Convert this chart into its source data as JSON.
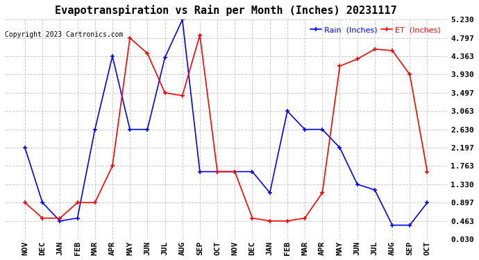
{
  "title": "Evapotranspiration vs Rain per Month (Inches) 20231117",
  "copyright": "Copyright 2023 Cartronics.com",
  "x_labels": [
    "NOV",
    "DEC",
    "JAN",
    "FEB",
    "MAR",
    "APR",
    "MAY",
    "JUN",
    "JUL",
    "AUG",
    "SEP",
    "OCT",
    "NOV",
    "DEC",
    "JAN",
    "FEB",
    "MAR",
    "APR",
    "MAY",
    "JUN",
    "JUL",
    "AUG",
    "SEP",
    "OCT"
  ],
  "rain_color": "blue",
  "et_color": "red",
  "legend_rain": "Rain  (Inches)",
  "legend_et": "ET  (Inches)",
  "rain_values": [
    2.197,
    0.897,
    0.463,
    0.53,
    2.63,
    4.363,
    2.63,
    2.63,
    4.33,
    5.23,
    1.63,
    1.63,
    1.63,
    1.63,
    1.13,
    3.063,
    2.63,
    2.63,
    2.197,
    1.33,
    1.197,
    0.363,
    0.363,
    0.897
  ],
  "et_values": [
    0.897,
    0.53,
    0.53,
    0.897,
    0.897,
    1.763,
    4.797,
    4.43,
    3.497,
    3.43,
    4.863,
    1.63,
    1.63,
    0.53,
    0.463,
    0.463,
    0.53,
    1.13,
    4.13,
    4.297,
    4.53,
    4.497,
    3.93,
    1.63
  ],
  "ylim_min": 0.03,
  "ylim_max": 5.23,
  "yticks": [
    0.03,
    0.463,
    0.897,
    1.33,
    1.763,
    2.197,
    2.63,
    3.063,
    3.497,
    3.93,
    4.363,
    4.797,
    5.23
  ],
  "bg_color": "#ffffff",
  "grid_color": "#cccccc",
  "title_fontsize": 11,
  "tick_fontsize": 8,
  "copyright_fontsize": 7
}
